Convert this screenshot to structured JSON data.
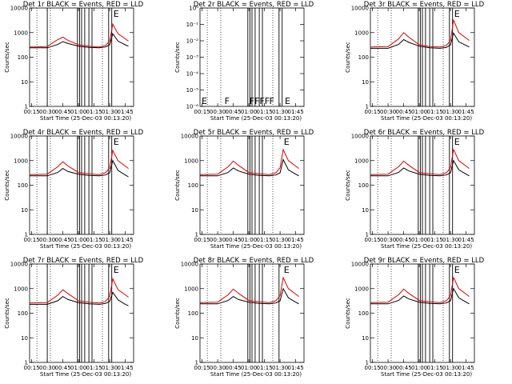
{
  "chart_data": [
    {
      "type": "line",
      "title": "Det 1r BLACK = Events, RED = LLD",
      "xlabel": "Start Time (25-Dec-03 00:13:20)",
      "ylabel": "Counts/sec",
      "yscale": "log",
      "ylim": [
        1,
        10000
      ],
      "xlim": [
        "00:13",
        "01:53"
      ],
      "xticks": [
        "00:15",
        "00:30",
        "00:45",
        "01:00",
        "01:15",
        "01:30",
        "01:45"
      ],
      "yticks": [
        "1",
        "10",
        "100",
        "1000",
        "10000"
      ],
      "dotted_lines": [
        "00:20",
        "00:33",
        "01:23"
      ],
      "solid_lines": [
        "00:30",
        "00:59",
        "01:01",
        "01:03",
        "01:06",
        "01:10",
        "01:13",
        "01:29",
        "01:32"
      ],
      "annotations": [
        {
          "text": "E",
          "x": "01:32"
        }
      ],
      "series": [
        {
          "name": "Events",
          "color": "#000000",
          "x": [
            "00:13",
            "00:30",
            "00:40",
            "00:45",
            "00:50",
            "01:00",
            "01:10",
            "01:20",
            "01:26",
            "01:30",
            "01:33",
            "01:38",
            "01:45",
            "01:48"
          ],
          "values": [
            240,
            240,
            330,
            430,
            360,
            280,
            250,
            240,
            260,
            320,
            900,
            450,
            320,
            280
          ]
        },
        {
          "name": "LLD",
          "color": "#dd0000",
          "x": [
            "00:13",
            "00:30",
            "00:40",
            "00:45",
            "00:50",
            "01:00",
            "01:10",
            "01:20",
            "01:26",
            "01:30",
            "01:33",
            "01:38",
            "01:45",
            "01:48"
          ],
          "values": [
            260,
            270,
            520,
            650,
            480,
            320,
            280,
            260,
            300,
            450,
            2200,
            900,
            560,
            450
          ]
        }
      ]
    },
    {
      "type": "line",
      "title": "Det 2r BLACK = Events, RED = LLD",
      "xlabel": "Start Time (25-Dec-03 00:13:20)",
      "ylabel": "Counts/sec",
      "yscale": "log",
      "ylim": [
        1e-06,
        1
      ],
      "xlim": [
        "00:13",
        "01:53"
      ],
      "xticks": [
        "00:15",
        "00:30",
        "00:45",
        "01:00",
        "01:15",
        "01:30",
        "01:45"
      ],
      "yticks": [
        "10⁻⁶",
        "10⁻⁵",
        "10⁻⁴",
        "10⁻³",
        "10⁻²",
        "10⁻¹",
        "10⁰"
      ],
      "dotted_lines": [
        "00:20",
        "00:33",
        "01:23"
      ],
      "solid_lines": [
        "00:59",
        "01:01",
        "01:03",
        "01:06",
        "01:10",
        "01:13",
        "01:29",
        "01:32"
      ],
      "annotations": [
        {
          "text": "E",
          "x": "00:13"
        },
        {
          "text": "F",
          "x": "00:35"
        },
        {
          "text": "FFFF",
          "x": "00:59"
        },
        {
          "text": "F",
          "x": "01:18"
        },
        {
          "text": "E",
          "x": "01:33"
        }
      ],
      "series": []
    },
    {
      "type": "line",
      "title": "Det 3r BLACK = Events, RED = LLD",
      "xlabel": "Start Time (25-Dec-03 00:13:20)",
      "ylabel": "Counts/sec",
      "yscale": "log",
      "ylim": [
        1,
        10000
      ],
      "xlim": [
        "00:13",
        "01:53"
      ],
      "xticks": [
        "00:15",
        "00:30",
        "00:45",
        "01:00",
        "01:15",
        "01:30",
        "01:45"
      ],
      "yticks": [
        "1",
        "10",
        "100",
        "1000",
        "10000"
      ],
      "dotted_lines": [
        "00:20",
        "00:33",
        "01:23"
      ],
      "solid_lines": [
        "00:59",
        "01:01",
        "01:03",
        "01:06",
        "01:10",
        "01:13",
        "01:29",
        "01:32"
      ],
      "annotations": [
        {
          "text": "E",
          "x": "01:32"
        }
      ],
      "series": [
        {
          "name": "Events",
          "color": "#000000",
          "x": [
            "00:13",
            "00:30",
            "00:40",
            "00:45",
            "00:50",
            "01:00",
            "01:10",
            "01:20",
            "01:26",
            "01:30",
            "01:33",
            "01:38",
            "01:45",
            "01:48"
          ],
          "values": [
            230,
            230,
            330,
            520,
            400,
            280,
            240,
            230,
            250,
            320,
            950,
            420,
            300,
            260
          ]
        },
        {
          "name": "LLD",
          "color": "#dd0000",
          "x": [
            "00:13",
            "00:30",
            "00:40",
            "00:45",
            "00:50",
            "01:00",
            "01:10",
            "01:20",
            "01:26",
            "01:30",
            "01:33",
            "01:38",
            "01:45",
            "01:48"
          ],
          "values": [
            260,
            270,
            550,
            1000,
            650,
            320,
            270,
            260,
            300,
            480,
            3200,
            1000,
            600,
            480
          ]
        }
      ]
    },
    {
      "type": "line",
      "title": "Det 4r BLACK = Events, RED = LLD",
      "xlabel": "Start Time (25-Dec-03 00:13:20)",
      "ylabel": "Counts/sec",
      "yscale": "log",
      "ylim": [
        1,
        10000
      ],
      "xlim": [
        "00:13",
        "01:53"
      ],
      "xticks": [
        "00:15",
        "00:30",
        "00:45",
        "01:00",
        "01:15",
        "01:30",
        "01:45"
      ],
      "yticks": [
        "1",
        "10",
        "100",
        "1000",
        "10000"
      ],
      "dotted_lines": [
        "00:20",
        "00:33",
        "01:23"
      ],
      "solid_lines": [
        "00:30",
        "00:59",
        "01:01",
        "01:03",
        "01:06",
        "01:10",
        "01:13",
        "01:29",
        "01:32"
      ],
      "annotations": [
        {
          "text": "E",
          "x": "01:32"
        }
      ],
      "series": [
        {
          "name": "Events",
          "color": "#000000",
          "x": [
            "00:13",
            "00:30",
            "00:40",
            "00:45",
            "00:50",
            "01:00",
            "01:10",
            "01:20",
            "01:26",
            "01:30",
            "01:33",
            "01:38",
            "01:45",
            "01:48"
          ],
          "values": [
            240,
            240,
            330,
            480,
            360,
            280,
            250,
            240,
            260,
            320,
            1000,
            400,
            260,
            220
          ]
        },
        {
          "name": "LLD",
          "color": "#dd0000",
          "x": [
            "00:13",
            "00:30",
            "00:40",
            "00:45",
            "00:50",
            "01:00",
            "01:10",
            "01:20",
            "01:26",
            "01:30",
            "01:33",
            "01:38",
            "01:45",
            "01:48"
          ],
          "values": [
            270,
            280,
            560,
            900,
            600,
            330,
            290,
            270,
            320,
            500,
            2600,
            1000,
            600,
            480
          ]
        }
      ]
    },
    {
      "type": "line",
      "title": "Det 5r BLACK = Events, RED = LLD",
      "xlabel": "Start Time (25-Dec-03 00:13:20)",
      "ylabel": "Counts/sec",
      "yscale": "log",
      "ylim": [
        1,
        10000
      ],
      "xlim": [
        "00:13",
        "01:53"
      ],
      "xticks": [
        "00:15",
        "00:30",
        "00:45",
        "01:00",
        "01:15",
        "01:30",
        "01:45"
      ],
      "yticks": [
        "1",
        "10",
        "100",
        "1000",
        "10000"
      ],
      "dotted_lines": [
        "00:20",
        "00:33",
        "01:23"
      ],
      "solid_lines": [
        "00:59",
        "01:01",
        "01:03",
        "01:06",
        "01:10",
        "01:13"
      ],
      "annotations": [
        {
          "text": "E",
          "x": "01:32"
        }
      ],
      "series": [
        {
          "name": "Events",
          "color": "#000000",
          "x": [
            "00:13",
            "00:30",
            "00:40",
            "00:45",
            "00:50",
            "01:00",
            "01:10",
            "01:20",
            "01:26",
            "01:30",
            "01:33",
            "01:38",
            "01:45",
            "01:48"
          ],
          "values": [
            240,
            240,
            330,
            500,
            380,
            280,
            250,
            240,
            260,
            320,
            1100,
            420,
            280,
            240
          ]
        },
        {
          "name": "LLD",
          "color": "#dd0000",
          "x": [
            "00:13",
            "00:30",
            "00:40",
            "00:45",
            "00:50",
            "01:00",
            "01:10",
            "01:20",
            "01:26",
            "01:30",
            "01:33",
            "01:38",
            "01:45",
            "01:48"
          ],
          "values": [
            270,
            280,
            560,
            950,
            640,
            330,
            290,
            270,
            320,
            520,
            2800,
            1000,
            600,
            480
          ]
        }
      ]
    },
    {
      "type": "line",
      "title": "Det 6r BLACK = Events, RED = LLD",
      "xlabel": "Start Time (25-Dec-03 00:13:20)",
      "ylabel": "Counts/sec",
      "yscale": "log",
      "ylim": [
        1,
        10000
      ],
      "xlim": [
        "00:13",
        "01:53"
      ],
      "xticks": [
        "00:15",
        "00:30",
        "00:45",
        "01:00",
        "01:15",
        "01:30",
        "01:45"
      ],
      "yticks": [
        "1",
        "10",
        "100",
        "1000",
        "10000"
      ],
      "dotted_lines": [
        "00:20",
        "00:33",
        "01:23"
      ],
      "solid_lines": [
        "00:59",
        "01:01",
        "01:03",
        "01:06",
        "01:10",
        "01:13",
        "01:29",
        "01:32"
      ],
      "annotations": [
        {
          "text": "E",
          "x": "01:32"
        }
      ],
      "series": [
        {
          "name": "Events",
          "color": "#000000",
          "x": [
            "00:13",
            "00:30",
            "00:40",
            "00:45",
            "00:50",
            "01:00",
            "01:10",
            "01:20",
            "01:26",
            "01:30",
            "01:33",
            "01:38",
            "01:45",
            "01:48"
          ],
          "values": [
            240,
            240,
            330,
            500,
            380,
            280,
            250,
            240,
            260,
            320,
            1000,
            420,
            280,
            240
          ]
        },
        {
          "name": "LLD",
          "color": "#dd0000",
          "x": [
            "00:13",
            "00:30",
            "00:40",
            "00:45",
            "00:50",
            "01:00",
            "01:10",
            "01:20",
            "01:26",
            "01:30",
            "01:33",
            "01:38",
            "01:45",
            "01:48"
          ],
          "values": [
            270,
            280,
            560,
            950,
            640,
            330,
            290,
            270,
            320,
            520,
            2800,
            1000,
            600,
            480
          ]
        }
      ]
    },
    {
      "type": "line",
      "title": "Det 7r BLACK = Events, RED = LLD",
      "xlabel": "Start Time (25-Dec-03 00:13:20)",
      "ylabel": "Counts/sec",
      "yscale": "log",
      "ylim": [
        1,
        10000
      ],
      "xlim": [
        "00:13",
        "01:53"
      ],
      "xticks": [
        "00:15",
        "00:30",
        "00:45",
        "01:00",
        "01:15",
        "01:30",
        "01:45"
      ],
      "yticks": [
        "1",
        "10",
        "100",
        "1000",
        "10000"
      ],
      "dotted_lines": [
        "00:20",
        "00:33",
        "01:23"
      ],
      "solid_lines": [
        "00:30",
        "00:59",
        "01:01",
        "01:03",
        "01:06",
        "01:10",
        "01:13",
        "01:29",
        "01:32"
      ],
      "annotations": [
        {
          "text": "E",
          "x": "01:32"
        }
      ],
      "series": [
        {
          "name": "Events",
          "color": "#000000",
          "x": [
            "00:13",
            "00:30",
            "00:40",
            "00:45",
            "00:50",
            "01:00",
            "01:10",
            "01:20",
            "01:26",
            "01:30",
            "01:33",
            "01:38",
            "01:45",
            "01:48"
          ],
          "values": [
            230,
            230,
            320,
            480,
            360,
            270,
            240,
            230,
            250,
            300,
            700,
            350,
            230,
            200
          ]
        },
        {
          "name": "LLD",
          "color": "#dd0000",
          "x": [
            "00:13",
            "00:30",
            "00:40",
            "00:45",
            "00:50",
            "01:00",
            "01:10",
            "01:20",
            "01:26",
            "01:30",
            "01:33",
            "01:38",
            "01:45",
            "01:48"
          ],
          "values": [
            260,
            270,
            540,
            900,
            620,
            320,
            280,
            260,
            300,
            480,
            2500,
            900,
            560,
            450
          ]
        }
      ]
    },
    {
      "type": "line",
      "title": "Det 8r BLACK = Events, RED = LLD",
      "xlabel": "Start Time (25-Dec-03 00:13:20)",
      "ylabel": "Counts/sec",
      "yscale": "log",
      "ylim": [
        1,
        10000
      ],
      "xlim": [
        "00:13",
        "01:53"
      ],
      "xticks": [
        "00:15",
        "00:30",
        "00:45",
        "01:00",
        "01:15",
        "01:30",
        "01:45"
      ],
      "yticks": [
        "1",
        "10",
        "100",
        "1000",
        "10000"
      ],
      "dotted_lines": [
        "00:20",
        "00:33",
        "01:23"
      ],
      "solid_lines": [
        "00:59",
        "01:01",
        "01:03",
        "01:06",
        "01:10",
        "01:13",
        "01:29"
      ],
      "annotations": [
        {
          "text": "E",
          "x": "01:32"
        }
      ],
      "series": [
        {
          "name": "Events",
          "color": "#000000",
          "x": [
            "00:13",
            "00:30",
            "00:40",
            "00:45",
            "00:50",
            "01:00",
            "01:10",
            "01:20",
            "01:26",
            "01:30",
            "01:33",
            "01:38",
            "01:45",
            "01:48"
          ],
          "values": [
            240,
            240,
            330,
            480,
            360,
            280,
            250,
            240,
            260,
            320,
            1000,
            420,
            280,
            240
          ]
        },
        {
          "name": "LLD",
          "color": "#dd0000",
          "x": [
            "00:13",
            "00:30",
            "00:40",
            "00:45",
            "00:50",
            "01:00",
            "01:10",
            "01:20",
            "01:26",
            "01:30",
            "01:33",
            "01:38",
            "01:45",
            "01:48"
          ],
          "values": [
            270,
            280,
            560,
            950,
            640,
            330,
            290,
            270,
            320,
            520,
            2800,
            1000,
            600,
            480
          ]
        }
      ]
    },
    {
      "type": "line",
      "title": "Det 9r BLACK = Events, RED = LLD",
      "xlabel": "Start Time (25-Dec-03 00:13:20)",
      "ylabel": "Counts/sec",
      "yscale": "log",
      "ylim": [
        1,
        10000
      ],
      "xlim": [
        "00:13",
        "01:53"
      ],
      "xticks": [
        "00:15",
        "00:30",
        "00:45",
        "01:00",
        "01:15",
        "01:30",
        "01:45"
      ],
      "yticks": [
        "1",
        "10",
        "100",
        "1000",
        "10000"
      ],
      "dotted_lines": [
        "00:20",
        "00:33",
        "01:23"
      ],
      "solid_lines": [
        "00:59",
        "01:01",
        "01:03",
        "01:06",
        "01:10",
        "01:13",
        "01:29",
        "01:32"
      ],
      "annotations": [
        {
          "text": "E",
          "x": "01:32"
        }
      ],
      "series": [
        {
          "name": "Events",
          "color": "#000000",
          "x": [
            "00:13",
            "00:30",
            "00:40",
            "00:45",
            "00:50",
            "01:00",
            "01:10",
            "01:20",
            "01:26",
            "01:30",
            "01:33",
            "01:38",
            "01:45",
            "01:48"
          ],
          "values": [
            240,
            240,
            330,
            500,
            380,
            280,
            250,
            240,
            260,
            320,
            1000,
            420,
            280,
            240
          ]
        },
        {
          "name": "LLD",
          "color": "#dd0000",
          "x": [
            "00:13",
            "00:30",
            "00:40",
            "00:45",
            "00:50",
            "01:00",
            "01:10",
            "01:20",
            "01:26",
            "01:30",
            "01:33",
            "01:38",
            "01:45",
            "01:48"
          ],
          "values": [
            270,
            280,
            560,
            950,
            640,
            330,
            290,
            270,
            320,
            520,
            2800,
            1000,
            600,
            480
          ]
        }
      ]
    }
  ]
}
